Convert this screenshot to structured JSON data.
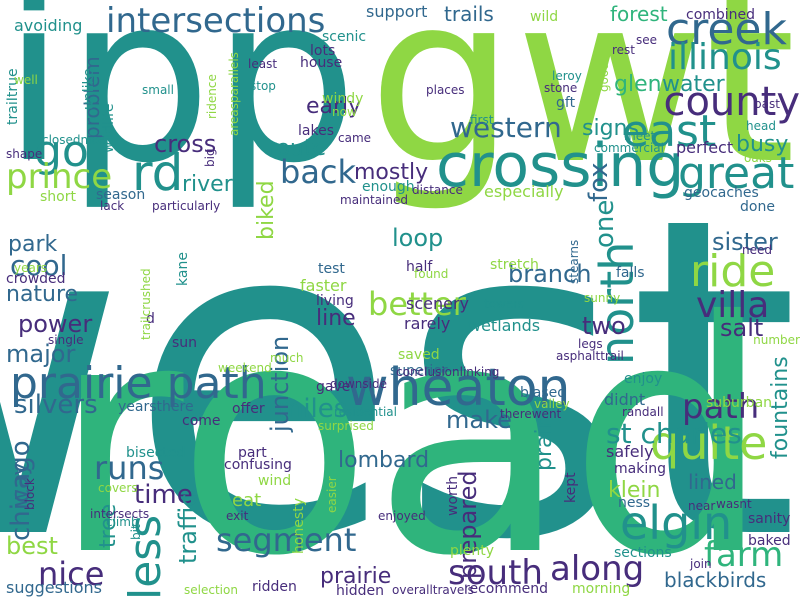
{
  "words": [
    {
      "text": "west",
      "size": 600,
      "color": "teal"
    },
    {
      "text": "road",
      "size": 600,
      "color": "green"
    },
    {
      "text": "ipp",
      "size": 600,
      "color": "teal"
    },
    {
      "text": "gwt",
      "size": 600,
      "color": "lime"
    },
    {
      "text": "crossing",
      "size": 600,
      "color": "teal"
    },
    {
      "text": "prairie path",
      "size": 600,
      "color": "blue"
    },
    {
      "text": "wheaton",
      "size": 600,
      "color": "blue"
    },
    {
      "text": "intersections",
      "size": 600,
      "color": "blue"
    },
    {
      "text": "creek",
      "size": 600,
      "color": "blue"
    },
    {
      "text": "illinois",
      "size": 600,
      "color": "teal"
    },
    {
      "text": "county",
      "size": 600,
      "color": "purple"
    },
    {
      "text": "east",
      "size": 600,
      "color": "teal"
    },
    {
      "text": "western",
      "size": 600,
      "color": "blue"
    },
    {
      "text": "go",
      "size": 600,
      "color": "teal"
    },
    {
      "text": "prince",
      "size": 600,
      "color": "lime"
    },
    {
      "text": "rd",
      "size": 600,
      "color": "teal"
    },
    {
      "text": "back",
      "size": 600,
      "color": "blue"
    },
    {
      "text": "great",
      "size": 600,
      "color": "teal"
    },
    {
      "text": "ride",
      "size": 600,
      "color": "lime"
    },
    {
      "text": "villa",
      "size": 600,
      "color": "purple"
    },
    {
      "text": "better",
      "size": 600,
      "color": "lime"
    },
    {
      "text": "north",
      "size": 600,
      "color": "teal"
    },
    {
      "text": "path",
      "size": 600,
      "color": "purple"
    },
    {
      "text": "quite",
      "size": 600,
      "color": "lime"
    },
    {
      "text": "elgin",
      "size": 600,
      "color": "teal"
    },
    {
      "text": "farm",
      "size": 600,
      "color": "green"
    },
    {
      "text": "along",
      "size": 600,
      "color": "purple"
    },
    {
      "text": "south",
      "size": 600,
      "color": "purple"
    },
    {
      "text": "segment",
      "size": 600,
      "color": "blue"
    },
    {
      "text": "nice",
      "size": 600,
      "color": "purple"
    },
    {
      "text": "less",
      "size": 600,
      "color": "teal"
    },
    {
      "text": "runs",
      "size": 600,
      "color": "blue"
    },
    {
      "text": "st charles",
      "size": 600,
      "color": "teal"
    },
    {
      "text": "lombard",
      "size": 600,
      "color": "blue"
    },
    {
      "text": "time",
      "size": 600,
      "color": "purple"
    },
    {
      "text": "prepared",
      "size": 600,
      "color": "purple"
    },
    {
      "text": "make",
      "size": 600,
      "color": "blue"
    },
    {
      "text": "miles",
      "size": 600,
      "color": "teal"
    },
    {
      "text": "silvers",
      "size": 600,
      "color": "blue"
    },
    {
      "text": "major",
      "size": 600,
      "color": "blue"
    },
    {
      "text": "power",
      "size": 600,
      "color": "purple"
    },
    {
      "text": "nature",
      "size": 600,
      "color": "blue"
    },
    {
      "text": "cool",
      "size": 600,
      "color": "blue"
    },
    {
      "text": "park",
      "size": 600,
      "color": "blue"
    },
    {
      "text": "loop",
      "size": 600,
      "color": "teal"
    },
    {
      "text": "branch",
      "size": 600,
      "color": "blue"
    },
    {
      "text": "line",
      "size": 600,
      "color": "purple"
    },
    {
      "text": "junction",
      "size": 600,
      "color": "blue"
    },
    {
      "text": "one",
      "size": 600,
      "color": "teal"
    },
    {
      "text": "fox",
      "size": 600,
      "color": "blue"
    },
    {
      "text": "two",
      "size": 600,
      "color": "purple"
    },
    {
      "text": "sister",
      "size": 600,
      "color": "blue"
    },
    {
      "text": "salt",
      "size": 600,
      "color": "purple"
    },
    {
      "text": "mostly",
      "size": 600,
      "color": "purple"
    },
    {
      "text": "route",
      "size": 600,
      "color": "teal"
    },
    {
      "text": "biked",
      "size": 600,
      "color": "lime"
    },
    {
      "text": "river",
      "size": 600,
      "color": "teal"
    },
    {
      "text": "cross",
      "size": 600,
      "color": "purple"
    },
    {
      "text": "early",
      "size": 600,
      "color": "purple"
    },
    {
      "text": "glen",
      "size": 600,
      "color": "green"
    },
    {
      "text": "water",
      "size": 600,
      "color": "teal"
    },
    {
      "text": "signs",
      "size": 600,
      "color": "teal"
    },
    {
      "text": "busy",
      "size": 600,
      "color": "teal"
    },
    {
      "text": "forest",
      "size": 600,
      "color": "green"
    },
    {
      "text": "trails",
      "size": 600,
      "color": "blue"
    },
    {
      "text": "support",
      "size": 600,
      "color": "blue"
    },
    {
      "text": "avoiding",
      "size": 600,
      "color": "teal"
    },
    {
      "text": "problem",
      "size": 600,
      "color": "blue"
    },
    {
      "text": "wildlife",
      "size": 600,
      "color": "teal"
    },
    {
      "text": "unlike",
      "size": 600,
      "color": "teal"
    },
    {
      "text": "traiItrue",
      "size": 600,
      "color": "teal"
    },
    {
      "text": "lots",
      "size": 600,
      "color": "purple"
    },
    {
      "text": "house",
      "size": 600,
      "color": "purple"
    },
    {
      "text": "scenic",
      "size": 600,
      "color": "teal"
    },
    {
      "text": "windy",
      "size": 600,
      "color": "lime"
    },
    {
      "text": "lakes",
      "size": 600,
      "color": "purple"
    },
    {
      "text": "short",
      "size": 600,
      "color": "lime"
    },
    {
      "text": "season",
      "size": 600,
      "color": "blue"
    },
    {
      "text": "enough",
      "size": 600,
      "color": "teal"
    },
    {
      "text": "especially",
      "size": 600,
      "color": "lime"
    },
    {
      "text": "geocaches",
      "size": 600,
      "color": "blue"
    },
    {
      "text": "done",
      "size": 600,
      "color": "blue"
    },
    {
      "text": "perfect",
      "size": 600,
      "color": "purple"
    },
    {
      "text": "test",
      "size": 600,
      "color": "blue"
    },
    {
      "text": "faster",
      "size": 600,
      "color": "lime"
    },
    {
      "text": "half",
      "size": 600,
      "color": "purple"
    },
    {
      "text": "stretch",
      "size": 600,
      "color": "lime"
    },
    {
      "text": "falls",
      "size": 600,
      "color": "blue"
    },
    {
      "text": "scenery",
      "size": 600,
      "color": "purple"
    },
    {
      "text": "living",
      "size": 600,
      "color": "purple"
    },
    {
      "text": "wetlands",
      "size": 600,
      "color": "teal"
    },
    {
      "text": "rarely",
      "size": 600,
      "color": "purple"
    },
    {
      "text": "saved",
      "size": 600,
      "color": "lime"
    },
    {
      "text": "superior",
      "size": 600,
      "color": "blue"
    },
    {
      "text": "enjoy",
      "size": 600,
      "color": "teal"
    },
    {
      "text": "didnt",
      "size": 600,
      "color": "blue"
    },
    {
      "text": "biased",
      "size": 600,
      "color": "blue"
    },
    {
      "text": "years",
      "size": 600,
      "color": "lime"
    },
    {
      "text": "crowded",
      "size": 600,
      "color": "purple"
    },
    {
      "text": "yearsthere",
      "size": 600,
      "color": "blue"
    },
    {
      "text": "offer",
      "size": 600,
      "color": "purple"
    },
    {
      "text": "come",
      "size": 600,
      "color": "purple"
    },
    {
      "text": "bisected",
      "size": 600,
      "color": "teal"
    },
    {
      "text": "part",
      "size": 600,
      "color": "purple"
    },
    {
      "text": "wind",
      "size": 600,
      "color": "lime"
    },
    {
      "text": "eat",
      "size": 600,
      "color": "lime"
    },
    {
      "text": "confusing",
      "size": 600,
      "color": "purple"
    },
    {
      "text": "chicago",
      "size": 600,
      "color": "blue"
    },
    {
      "text": "way",
      "size": 600,
      "color": "blue"
    },
    {
      "text": "best",
      "size": 600,
      "color": "lime"
    },
    {
      "text": "tree",
      "size": 600,
      "color": "teal"
    },
    {
      "text": "traffic",
      "size": 600,
      "color": "teal"
    },
    {
      "text": "prairie",
      "size": 600,
      "color": "purple"
    },
    {
      "text": "praire",
      "size": 600,
      "color": "teal"
    },
    {
      "text": "klein",
      "size": 600,
      "color": "lime"
    },
    {
      "text": "lined",
      "size": 600,
      "color": "blue"
    },
    {
      "text": "fountains",
      "size": 600,
      "color": "teal"
    },
    {
      "text": "suburban",
      "size": 600,
      "color": "lime"
    },
    {
      "text": "safely",
      "size": 600,
      "color": "purple"
    },
    {
      "text": "making",
      "size": 600,
      "color": "purple"
    },
    {
      "text": "ness",
      "size": 600,
      "color": "blue"
    },
    {
      "text": "sections",
      "size": 600,
      "color": "teal"
    },
    {
      "text": "blackbirds",
      "size": 600,
      "color": "blue"
    },
    {
      "text": "baked",
      "size": 600,
      "color": "purple"
    },
    {
      "text": "sanity",
      "size": 600,
      "color": "purple"
    },
    {
      "text": "suggestions",
      "size": 600,
      "color": "blue"
    },
    {
      "text": "hidden",
      "size": 600,
      "color": "purple"
    },
    {
      "text": "recommend",
      "size": 600,
      "color": "purple"
    },
    {
      "text": "morning",
      "size": 600,
      "color": "lime"
    },
    {
      "text": "ridden",
      "size": 600,
      "color": "purple"
    },
    {
      "text": "plenty",
      "size": 600,
      "color": "lime"
    },
    {
      "text": "honesty",
      "size": 600,
      "color": "lime"
    },
    {
      "text": "worth",
      "size": 600,
      "color": "purple"
    },
    {
      "text": "kept",
      "size": 600,
      "color": "purple"
    },
    {
      "text": "gft",
      "size": 600,
      "color": "blue"
    },
    {
      "text": "wild",
      "size": 600,
      "color": "lime"
    },
    {
      "text": "combined",
      "size": 600,
      "color": "purple"
    },
    {
      "text": "see",
      "size": 600,
      "color": "purple"
    },
    {
      "text": "rest",
      "size": 600,
      "color": "purple"
    },
    {
      "text": "past",
      "size": 600,
      "color": "purple"
    },
    {
      "text": "leroy",
      "size": 600,
      "color": "teal"
    },
    {
      "text": "stone",
      "size": 600,
      "color": "purple"
    },
    {
      "text": "good",
      "size": 600,
      "color": "lime"
    },
    {
      "text": "head",
      "size": 600,
      "color": "teal"
    },
    {
      "text": "first",
      "size": 600,
      "color": "teal"
    },
    {
      "text": "places",
      "size": 600,
      "color": "purple"
    },
    {
      "text": "meet",
      "size": 600,
      "color": "teal"
    },
    {
      "text": "commercial",
      "size": 600,
      "color": "teal"
    },
    {
      "text": "oaks",
      "size": 600,
      "color": "lime"
    },
    {
      "text": "stearns",
      "size": 600,
      "color": "blue"
    },
    {
      "text": "need",
      "size": 600,
      "color": "purple"
    },
    {
      "text": "number",
      "size": 600,
      "color": "lime"
    },
    {
      "text": "towers",
      "size": 600,
      "color": "teal"
    },
    {
      "text": "sunny",
      "size": 600,
      "color": "lime"
    },
    {
      "text": "legs",
      "size": 600,
      "color": "purple"
    },
    {
      "text": "asphalttrail",
      "size": 600,
      "color": "purple"
    },
    {
      "text": "conclusionlinking",
      "size": 600,
      "color": "purple"
    },
    {
      "text": "downside",
      "size": 600,
      "color": "purple"
    },
    {
      "text": "residential",
      "size": 600,
      "color": "teal"
    },
    {
      "text": "therewent",
      "size": 600,
      "color": "purple"
    },
    {
      "text": "randall",
      "size": 600,
      "color": "purple"
    },
    {
      "text": "valley",
      "size": 600,
      "color": "lime"
    },
    {
      "text": "gave",
      "size": 600,
      "color": "purple"
    },
    {
      "text": "much",
      "size": 600,
      "color": "lime"
    },
    {
      "text": "weekend",
      "size": 600,
      "color": "lime"
    },
    {
      "text": "sun",
      "size": 600,
      "color": "purple"
    },
    {
      "text": "d",
      "size": 600,
      "color": "purple"
    },
    {
      "text": "single",
      "size": 600,
      "color": "purple"
    },
    {
      "text": "trailcrushed",
      "size": 600,
      "color": "lime"
    },
    {
      "text": "kane",
      "size": 600,
      "color": "teal"
    },
    {
      "text": "found",
      "size": 600,
      "color": "lime"
    },
    {
      "text": "surprised",
      "size": 600,
      "color": "lime"
    },
    {
      "text": "block",
      "size": 600,
      "color": "purple"
    },
    {
      "text": "climb",
      "size": 600,
      "color": "teal"
    },
    {
      "text": "intersects",
      "size": 600,
      "color": "purple"
    },
    {
      "text": "covers",
      "size": 600,
      "color": "lime"
    },
    {
      "text": "bit",
      "size": 600,
      "color": "teal"
    },
    {
      "text": "exit",
      "size": 600,
      "color": "purple"
    },
    {
      "text": "easier",
      "size": 600,
      "color": "lime"
    },
    {
      "text": "enjoyed",
      "size": 600,
      "color": "purple"
    },
    {
      "text": "selection",
      "size": 600,
      "color": "lime"
    },
    {
      "text": "overalltravels",
      "size": 600,
      "color": "purple"
    },
    {
      "text": "join",
      "size": 600,
      "color": "purple"
    },
    {
      "text": "near",
      "size": 600,
      "color": "purple"
    },
    {
      "text": "wasnt",
      "size": 600,
      "color": "purple"
    },
    {
      "text": "maintained",
      "size": 600,
      "color": "purple"
    },
    {
      "text": "particularly",
      "size": 600,
      "color": "purple"
    },
    {
      "text": "lack",
      "size": 600,
      "color": "purple"
    },
    {
      "text": "distance",
      "size": 600,
      "color": "purple"
    },
    {
      "text": "closednice",
      "size": 600,
      "color": "teal"
    },
    {
      "text": "shape",
      "size": 600,
      "color": "purple"
    },
    {
      "text": "well",
      "size": 600,
      "color": "lime"
    },
    {
      "text": "small",
      "size": 600,
      "color": "teal"
    },
    {
      "text": "stop",
      "size": 600,
      "color": "teal"
    },
    {
      "text": "least",
      "size": 600,
      "color": "purple"
    },
    {
      "text": "ridence",
      "size": 600,
      "color": "lime"
    },
    {
      "text": "areasparallels",
      "size": 600,
      "color": "lime"
    },
    {
      "text": "big",
      "size": 600,
      "color": "purple"
    },
    {
      "text": "now",
      "size": 600,
      "color": "lime"
    },
    {
      "text": "came",
      "size": 600,
      "color": "purple"
    }
  ],
  "colors": {
    "teal": "#21918c",
    "green": "#2fb47c",
    "lime": "#8fd744",
    "blue": "#31688e",
    "purple": "#472d7b"
  }
}
